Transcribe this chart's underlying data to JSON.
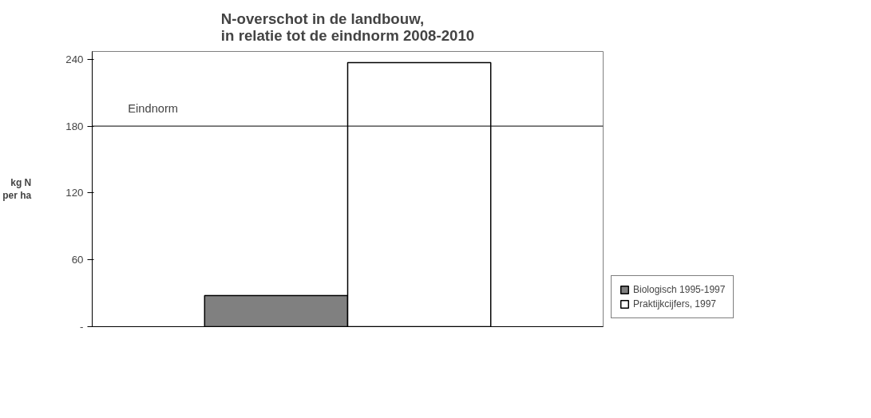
{
  "chart_data": {
    "type": "bar",
    "title": "N-overschot in de  landbouw,\nin relatie tot de eindnorm 2008-2010",
    "ylabel": "kg N per ha",
    "categories": [
      null
    ],
    "series": [
      {
        "name": "Biologisch 1995-1997",
        "color": "#808080",
        "values": [
          28
        ]
      },
      {
        "name": "Praktijkcijfers, 1997",
        "color": "#ffffff",
        "values": [
          237
        ]
      }
    ],
    "ylim": [
      0,
      247
    ],
    "yticks": [
      {
        "value": 0,
        "label": "-"
      },
      60,
      120,
      180,
      240
    ],
    "ref_lines": [
      {
        "axis": "y",
        "value": 180,
        "label": "Eindnorm",
        "color": "#000000"
      }
    ],
    "grid": false,
    "legend": "right"
  }
}
